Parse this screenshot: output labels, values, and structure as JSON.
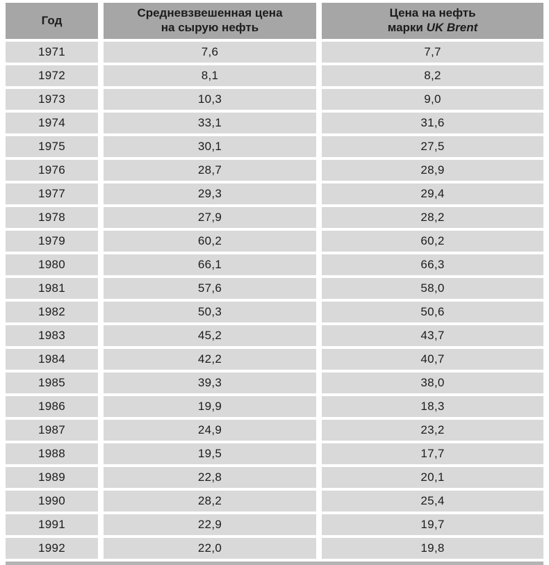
{
  "chart_data": {
    "type": "table",
    "columns": [
      "Год",
      "Средневзвешенная цена на сырую нефть",
      "Цена на нефть марки UK Brent"
    ],
    "header": {
      "year": "Год",
      "avg_line1": "Средневзвешенная цена",
      "avg_line2": "на сырую нефть",
      "brent_line1": "Цена на нефть",
      "brent_line2_prefix": "марки ",
      "brent_line2_brand": "UK Brent"
    },
    "rows": [
      {
        "year": "1971",
        "avg": "7,6",
        "brent": "7,7"
      },
      {
        "year": "1972",
        "avg": "8,1",
        "brent": "8,2"
      },
      {
        "year": "1973",
        "avg": "10,3",
        "brent": "9,0"
      },
      {
        "year": "1974",
        "avg": "33,1",
        "brent": "31,6"
      },
      {
        "year": "1975",
        "avg": "30,1",
        "brent": "27,5"
      },
      {
        "year": "1976",
        "avg": "28,7",
        "brent": "28,9"
      },
      {
        "year": "1977",
        "avg": "29,3",
        "brent": "29,4"
      },
      {
        "year": "1978",
        "avg": "27,9",
        "brent": "28,2"
      },
      {
        "year": "1979",
        "avg": "60,2",
        "brent": "60,2"
      },
      {
        "year": "1980",
        "avg": "66,1",
        "brent": "66,3"
      },
      {
        "year": "1981",
        "avg": "57,6",
        "brent": "58,0"
      },
      {
        "year": "1982",
        "avg": "50,3",
        "brent": "50,6"
      },
      {
        "year": "1983",
        "avg": "45,2",
        "brent": "43,7"
      },
      {
        "year": "1984",
        "avg": "42,2",
        "brent": "40,7"
      },
      {
        "year": "1985",
        "avg": "39,3",
        "brent": "38,0"
      },
      {
        "year": "1986",
        "avg": "19,9",
        "brent": "18,3"
      },
      {
        "year": "1987",
        "avg": "24,9",
        "brent": "23,2"
      },
      {
        "year": "1988",
        "avg": "19,5",
        "brent": "17,7"
      },
      {
        "year": "1989",
        "avg": "22,8",
        "brent": "20,1"
      },
      {
        "year": "1990",
        "avg": "28,2",
        "brent": "25,4"
      },
      {
        "year": "1991",
        "avg": "22,9",
        "brent": "19,7"
      },
      {
        "year": "1992",
        "avg": "22,0",
        "brent": "19,8"
      }
    ]
  },
  "colors": {
    "header_bg": "#a6a6a6",
    "row_bg": "#d9d9d9",
    "text": "#1c1c1c",
    "gap": "#ffffff",
    "cutoff_strip": "#b4b4b4"
  }
}
